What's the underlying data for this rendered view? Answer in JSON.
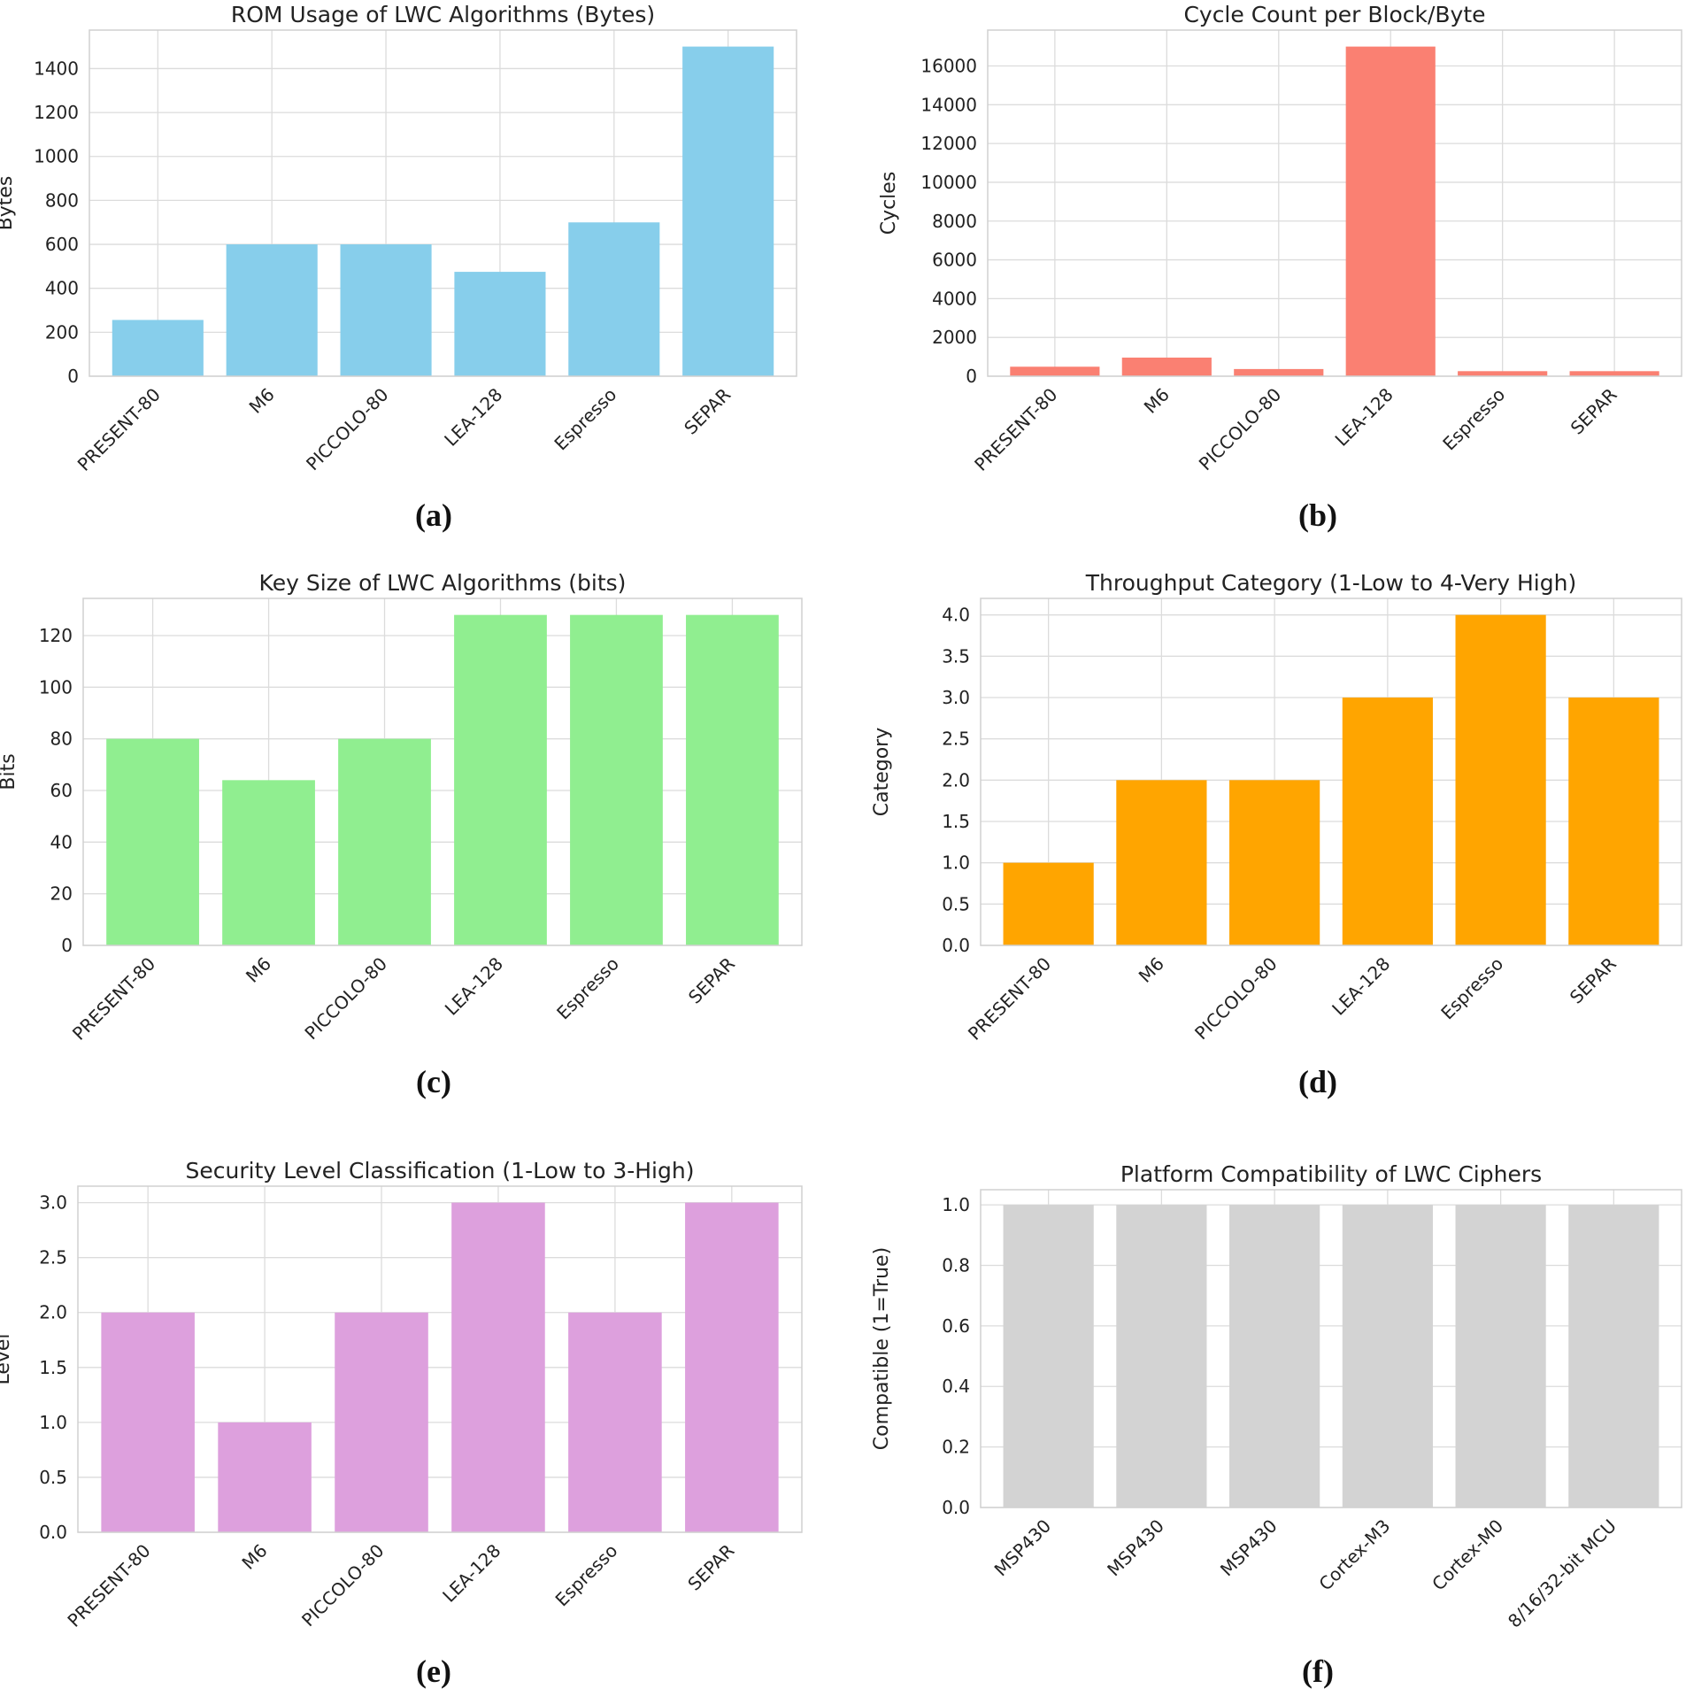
{
  "chart_data": [
    {
      "type": "bar",
      "panel_label": "(a)",
      "title": "ROM Usage of LWC Algorithms (Bytes)",
      "xlabel": "",
      "ylabel": "Bytes",
      "categories": [
        "PRESENT-80",
        "M6",
        "PICCOLO-80",
        "LEA-128",
        "Espresso",
        "SEPAR"
      ],
      "values": [
        256,
        600,
        600,
        475,
        700,
        1500
      ],
      "ylim": [
        0,
        1575
      ],
      "yticks": [
        0,
        200,
        400,
        600,
        800,
        1000,
        1200,
        1400
      ],
      "tick_format": "int",
      "color": "#87CEEB",
      "grid": true
    },
    {
      "type": "bar",
      "panel_label": "(b)",
      "title": "Cycle Count per Block/Byte",
      "xlabel": "",
      "ylabel": "Cycles",
      "categories": [
        "PRESENT-80",
        "M6",
        "PICCOLO-80",
        "LEA-128",
        "Espresso",
        "SEPAR"
      ],
      "values": [
        490,
        960,
        370,
        17000,
        260,
        260
      ],
      "ylim": [
        0,
        17850
      ],
      "yticks": [
        0,
        2000,
        4000,
        6000,
        8000,
        10000,
        12000,
        14000,
        16000
      ],
      "tick_format": "int",
      "color": "#FA8072",
      "grid": true
    },
    {
      "type": "bar",
      "panel_label": "(c)",
      "title": "Key Size of LWC Algorithms (bits)",
      "xlabel": "",
      "ylabel": "Bits",
      "categories": [
        "PRESENT-80",
        "M6",
        "PICCOLO-80",
        "LEA-128",
        "Espresso",
        "SEPAR"
      ],
      "values": [
        80,
        64,
        80,
        128,
        128,
        128
      ],
      "ylim": [
        0,
        134.4
      ],
      "yticks": [
        0,
        20,
        40,
        60,
        80,
        100,
        120
      ],
      "tick_format": "int",
      "color": "#90EE90",
      "grid": true
    },
    {
      "type": "bar",
      "panel_label": "(d)",
      "title": "Throughput Category (1-Low to 4-Very High)",
      "xlabel": "",
      "ylabel": "Category",
      "categories": [
        "PRESENT-80",
        "M6",
        "PICCOLO-80",
        "LEA-128",
        "Espresso",
        "SEPAR"
      ],
      "values": [
        1,
        2,
        2,
        3,
        4,
        3
      ],
      "ylim": [
        0,
        4.2
      ],
      "yticks": [
        0,
        0.5,
        1,
        1.5,
        2,
        2.5,
        3,
        3.5,
        4
      ],
      "tick_format": "1dp",
      "color": "#FFA500",
      "grid": true
    },
    {
      "type": "bar",
      "panel_label": "(e)",
      "title": "Security Level Classification (1-Low to 3-High)",
      "xlabel": "",
      "ylabel": "Level",
      "categories": [
        "PRESENT-80",
        "M6",
        "PICCOLO-80",
        "LEA-128",
        "Espresso",
        "SEPAR"
      ],
      "values": [
        2,
        1,
        2,
        3,
        2,
        3
      ],
      "ylim": [
        0,
        3.15
      ],
      "yticks": [
        0,
        0.5,
        1,
        1.5,
        2,
        2.5,
        3
      ],
      "tick_format": "1dp",
      "color": "#DDA0DD",
      "grid": true
    },
    {
      "type": "bar",
      "panel_label": "(f)",
      "title": "Platform Compatibility of LWC Ciphers",
      "xlabel": "",
      "ylabel": "Compatible (1=True)",
      "categories": [
        "MSP430",
        "MSP430",
        "MSP430",
        "Cortex-M3",
        "Cortex-M0",
        "8/16/32-bit MCU"
      ],
      "values": [
        1,
        1,
        1,
        1,
        1,
        1
      ],
      "ylim": [
        0,
        1.05
      ],
      "yticks": [
        0,
        0.2,
        0.4,
        0.6,
        0.8,
        1.0
      ],
      "tick_format": "1dp",
      "color": "#D3D3D3",
      "grid": true
    }
  ]
}
